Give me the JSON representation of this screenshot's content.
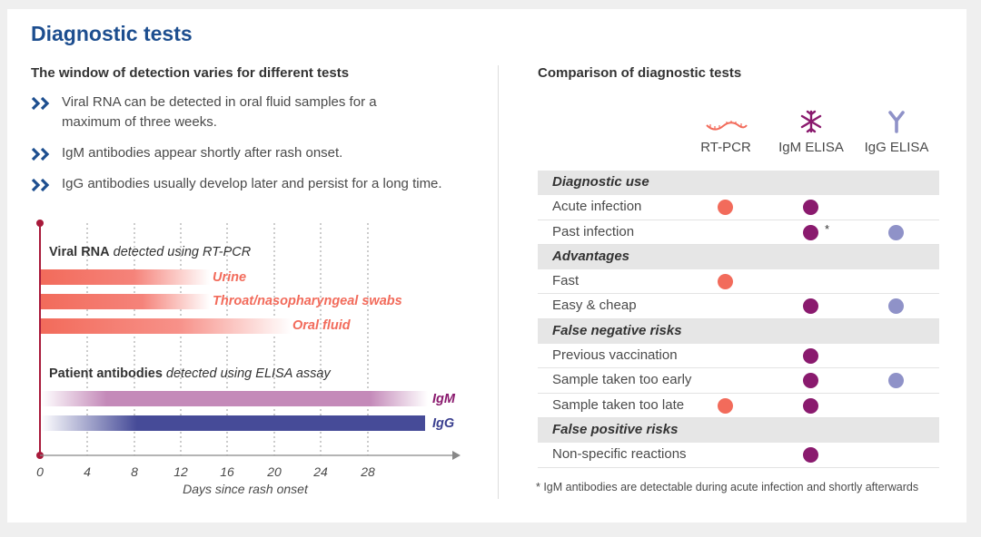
{
  "title": "Diagnostic tests",
  "left": {
    "heading": "The window of detection varies for different tests",
    "bullets": [
      {
        "line1": "Viral RNA can be detected in oral fluid samples for a",
        "line2": "maximum of three weeks."
      },
      {
        "line1": "IgM antibodies appear shortly after rash onset.",
        "line2": ""
      },
      {
        "line1": "IgG antibodies usually develop later and persist for a long time.",
        "line2": ""
      }
    ]
  },
  "timeline": {
    "rna_heading_bold": "Viral RNA",
    "rna_heading_rest": " detected using RT-PCR",
    "antibody_heading_bold": "Patient antibodies",
    "antibody_heading_rest": " detected using ELISA assay",
    "x_axis_label": "Days since rash onset",
    "ticks": [
      "0",
      "4",
      "8",
      "12",
      "16",
      "20",
      "24",
      "28"
    ],
    "bars": [
      {
        "label": "Urine",
        "color": "#f26b5b"
      },
      {
        "label": "Throat/nasopharyngeal swabs",
        "color": "#f26b5b"
      },
      {
        "label": "Oral fluid",
        "color": "#f26b5b"
      },
      {
        "label": "IgM",
        "color": "#a8468f"
      },
      {
        "label": "IgG",
        "color": "#3a3f8f"
      }
    ]
  },
  "right": {
    "heading": "Comparison of diagnostic tests",
    "columns": [
      {
        "label": "RT-PCR",
        "icon": "rna-strand-icon",
        "color": "#f26b5b"
      },
      {
        "label": "IgM ELISA",
        "icon": "igm-antibody-icon",
        "color": "#8a1a6e"
      },
      {
        "label": "IgG ELISA",
        "icon": "igg-antibody-icon",
        "color": "#8f92c8"
      }
    ],
    "rows": [
      {
        "label": "Diagnostic use",
        "category": true
      },
      {
        "label": "Acute infection",
        "marks": [
          true,
          true,
          false
        ]
      },
      {
        "label": "Past infection",
        "marks": [
          false,
          true,
          true
        ],
        "asterisk": "*"
      },
      {
        "label": "Advantages",
        "category": true
      },
      {
        "label": "Fast",
        "marks": [
          true,
          false,
          false
        ]
      },
      {
        "label": "Easy & cheap",
        "marks": [
          false,
          true,
          true
        ]
      },
      {
        "label": "False negative risks",
        "category": true
      },
      {
        "label": "Previous vaccination",
        "marks": [
          false,
          true,
          false
        ]
      },
      {
        "label": "Sample taken too early",
        "marks": [
          false,
          true,
          true
        ]
      },
      {
        "label": "Sample taken too late",
        "marks": [
          true,
          true,
          false
        ]
      },
      {
        "label": "False positive risks",
        "category": true
      },
      {
        "label": "Non-specific reactions",
        "marks": [
          false,
          true,
          false
        ]
      }
    ],
    "footnote": "* IgM antibodies are detectable during acute infection and shortly afterwards"
  }
}
